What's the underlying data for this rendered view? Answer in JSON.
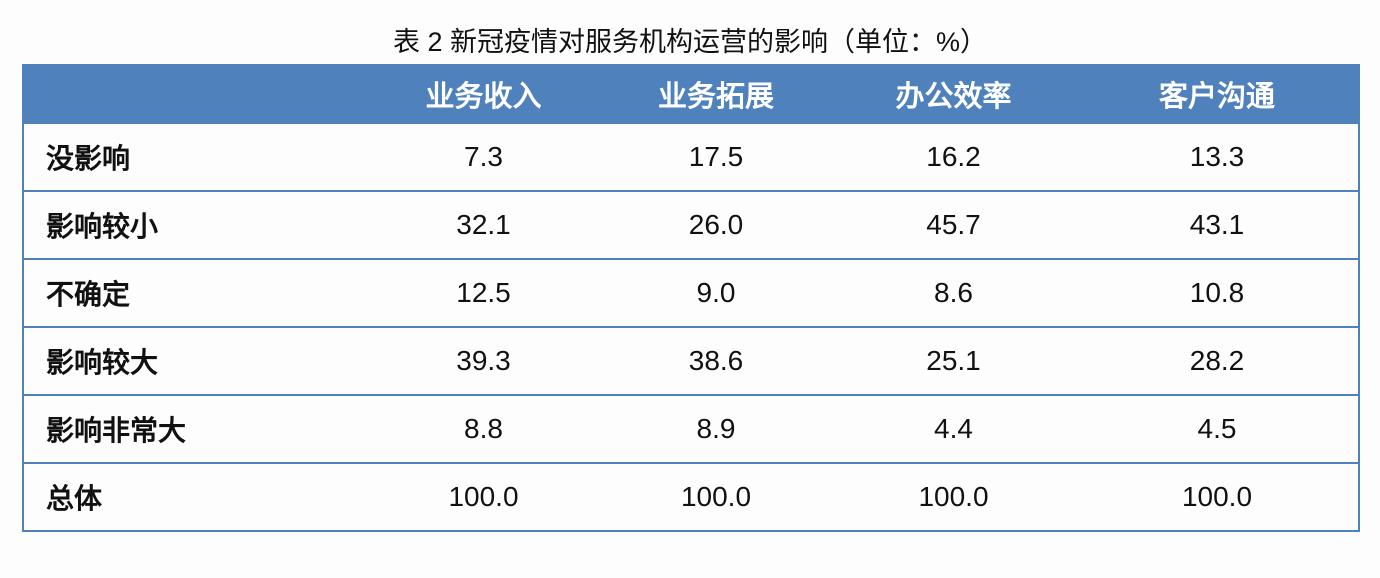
{
  "title": "表 2 新冠疫情对服务机构运营的影响（单位：%）",
  "table": {
    "header": [
      "业务收入",
      "业务拓展",
      "办公效率",
      "客户沟通"
    ],
    "rows": [
      [
        "没影响",
        "7.3",
        "17.5",
        "16.2",
        "13.3"
      ],
      [
        "影响较小",
        "32.1",
        "26.0",
        "45.7",
        "43.1"
      ],
      [
        "不确定",
        "12.5",
        "9.0",
        "8.6",
        "10.8"
      ],
      [
        "影响较大",
        "39.3",
        "38.6",
        "25.1",
        "28.2"
      ],
      [
        "影响非常大",
        "8.8",
        "8.9",
        "4.4",
        "4.5"
      ],
      [
        "总体",
        "100.0",
        "100.0",
        "100.0",
        "100.0"
      ]
    ]
  }
}
